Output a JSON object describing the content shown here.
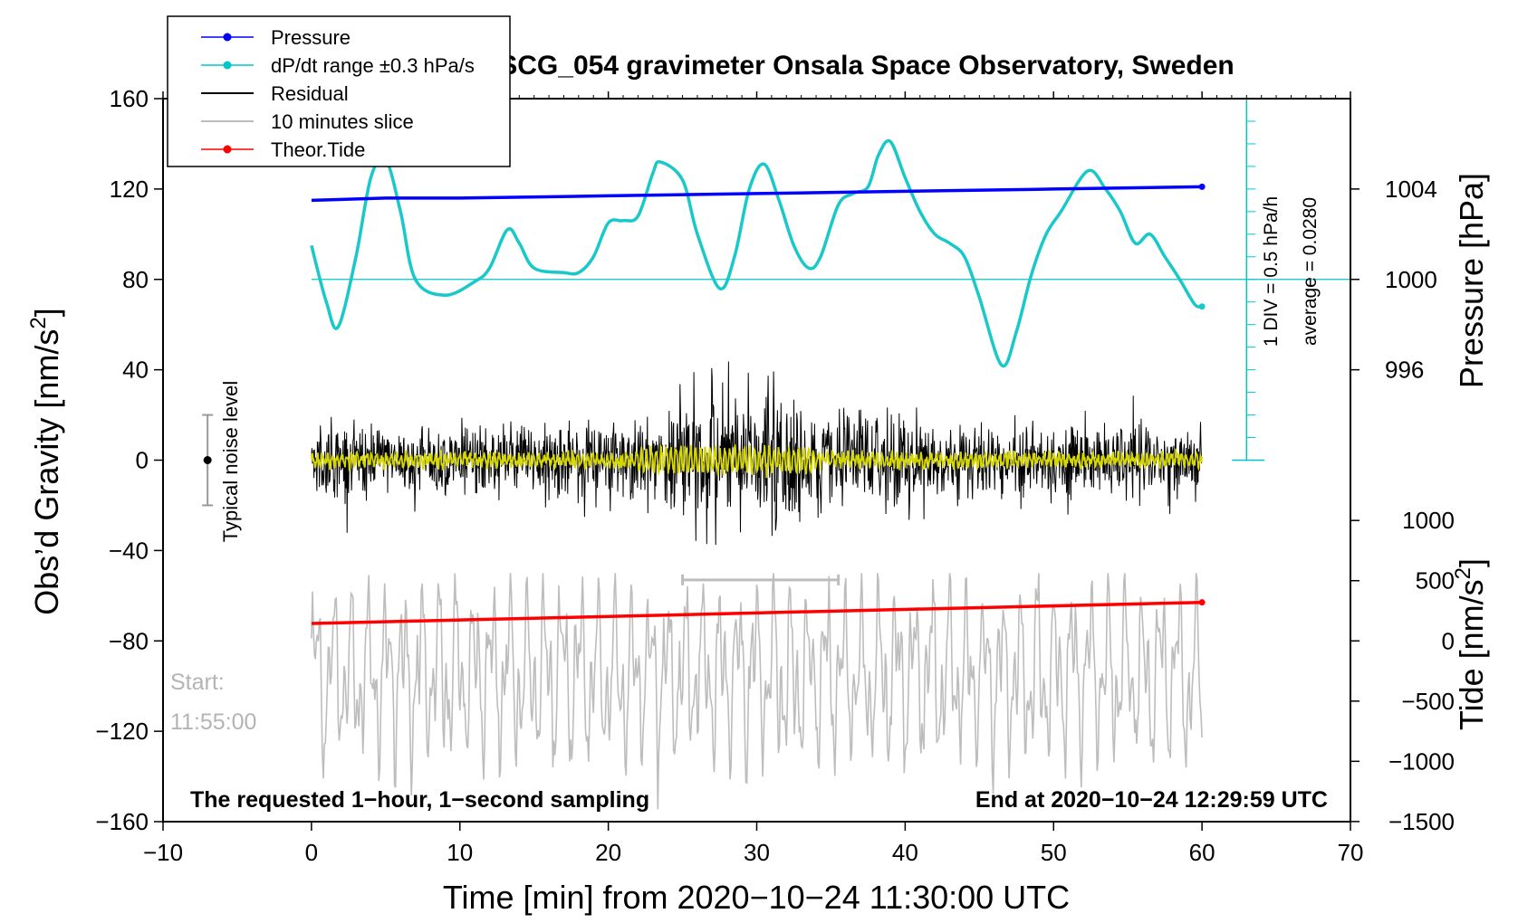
{
  "chart_data": {
    "type": "line",
    "title": "SCG_054 gravimeter Onsala Space Observatory, Sweden",
    "xlabel": "Time [min] from 2020−10−24 11:30:00 UTC",
    "ylabel_left_main": "Obs’d Gravity [nm/s",
    "ylabel_left_sup": "2",
    "ylabel_left_tail": "]",
    "ylabel_right_pressure": "Pressure [hPa]",
    "ylabel_right_tide_main": "Tide [nm/s",
    "ylabel_right_tide_sup": "2",
    "ylabel_right_tide_tail": "]",
    "xlim": [
      -10,
      70
    ],
    "ylim_left": [
      -160,
      160
    ],
    "x_ticks": [
      -10,
      0,
      10,
      20,
      30,
      40,
      50,
      60,
      70
    ],
    "x_tick_labels": [
      "−10",
      "0",
      "10",
      "20",
      "30",
      "40",
      "50",
      "60",
      "70"
    ],
    "y_left_ticks": [
      160,
      120,
      80,
      40,
      0,
      -40,
      -80,
      -120,
      -160
    ],
    "y_left_tick_labels": [
      "160",
      "120",
      "80",
      "40",
      "0",
      "−40",
      "−80",
      "−120",
      "−160"
    ],
    "pressure_ticks": [
      1004,
      1000,
      996
    ],
    "pressure_tick_labels": [
      "1004",
      "1000",
      "996"
    ],
    "pressure_ref": {
      "pressure": 1000,
      "gravity": 80
    },
    "pressure_scale_gravity_per_hpa": 10,
    "tide_ticks": [
      1000,
      500,
      0,
      -500,
      -1000,
      -1500
    ],
    "tide_tick_labels": [
      "1000",
      "500",
      "0",
      "−500",
      "−1000",
      "−1500"
    ],
    "tide_ref": {
      "tide": 0,
      "gravity": -80
    },
    "tide_scale_gravity_per_unit": 0.0533,
    "legend": {
      "position": "top-left",
      "entries": [
        {
          "label": "Pressure",
          "color": "#0000ff",
          "marker": true
        },
        {
          "label": "dP/dt range ±0.3 hPa/s",
          "color": "#00c8c8",
          "marker": true
        },
        {
          "label": "Residual",
          "color": "#000000",
          "marker": false
        },
        {
          "label": "10 minutes slice",
          "color": "#bdbdbd",
          "marker": false
        },
        {
          "label": "Theor.Tide",
          "color": "#ff0000",
          "marker": true
        }
      ]
    },
    "annotations": {
      "noise_label": "Typical noise level",
      "noise_bar": {
        "x": -7,
        "center": 0,
        "low": -20,
        "high": 20
      },
      "dpdt_scale_label": "1 DIV = 0.5 hPa/h",
      "average_label": "average = 0.0280",
      "start_label": "Start:",
      "start_time": "11:55:00",
      "bottom_left": "The requested 1−hour, 1−second sampling",
      "bottom_right": "End at 2020−10−24 12:29:59 UTC",
      "slice_marker": {
        "x_start": 25,
        "x_end": 35.5,
        "y": -53
      }
    },
    "series": [
      {
        "name": "Pressure",
        "color": "#0000ff",
        "units": "hPa",
        "x": [
          0,
          5,
          10,
          20,
          30,
          40,
          50,
          60
        ],
        "values": [
          1003.5,
          1003.6,
          1003.6,
          1003.7,
          1003.8,
          1003.9,
          1004.0,
          1004.1
        ]
      },
      {
        "name": "dP/dt range ±0.3 hPa/s",
        "color": "#00c8c8",
        "units": "nm/s2 (plot scale)",
        "x": [
          0,
          1,
          1.8,
          3,
          4,
          5,
          6,
          7,
          9,
          11,
          12,
          13.2,
          14,
          15,
          17,
          18,
          19,
          20,
          21,
          22,
          23,
          23.5,
          25,
          26,
          27.5,
          28.5,
          29.5,
          30.5,
          31.5,
          32.5,
          33.5,
          34.3,
          35.5,
          36.5,
          37.5,
          38.2,
          39,
          40,
          41,
          42,
          43,
          44,
          45,
          46.5,
          47.5,
          48.5,
          49.5,
          50.5,
          52.3,
          53.5,
          54.5,
          55.5,
          56.5,
          57.5,
          58.5,
          59.5,
          60
        ],
        "values": [
          95,
          70,
          59,
          90,
          125,
          133,
          110,
          80,
          73,
          79,
          85,
          102,
          96,
          85,
          83,
          83,
          90,
          105,
          106,
          108,
          127,
          132,
          124,
          100,
          76,
          90,
          120,
          131,
          115,
          95,
          85,
          90,
          113,
          118,
          121,
          135,
          141,
          125,
          110,
          100,
          96,
          90,
          72,
          42,
          57,
          82,
          100,
          110,
          128,
          120,
          110,
          96,
          100,
          90,
          80,
          69,
          68
        ]
      },
      {
        "name": "Theor.Tide",
        "color": "#ff0000",
        "units": "nm/s2",
        "x": [
          0,
          60
        ],
        "values": [
          145,
          320
        ]
      }
    ]
  }
}
